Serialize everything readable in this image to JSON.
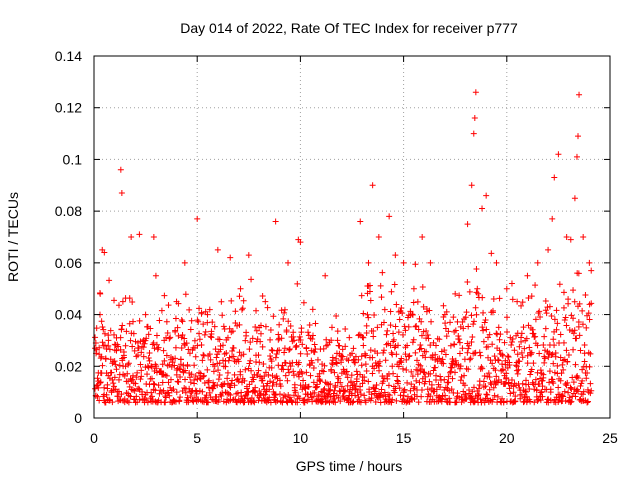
{
  "chart_data": {
    "type": "scatter",
    "title": "Day 014 of 2022, Rate Of TEC Index for receiver p777",
    "xlabel": "GPS time / hours",
    "ylabel": "ROTI / TECUs",
    "xlim": [
      0,
      25
    ],
    "ylim": [
      0,
      0.14
    ],
    "xticks": [
      0,
      5,
      10,
      15,
      20,
      25
    ],
    "xtick_labels": [
      "0",
      "5",
      "10",
      "15",
      "20",
      "25"
    ],
    "yticks": [
      0,
      0.02,
      0.04,
      0.06,
      0.08,
      0.1,
      0.12,
      0.14
    ],
    "ytick_labels": [
      "0",
      "0.02",
      "0.04",
      "0.06",
      "0.08",
      "0.1",
      "0.12",
      "0.14"
    ],
    "grid": true,
    "marker": "+",
    "marker_color": "#ff0000",
    "series": [
      {
        "name": "ROTI",
        "x": [
          0.1,
          0.3,
          0.4,
          0.5,
          0.7,
          1.0,
          1.3,
          1.35,
          1.4,
          1.8,
          2.2,
          2.5,
          2.9,
          3.0,
          3.4,
          4.0,
          4.4,
          5.0,
          5.5,
          6.0,
          6.6,
          7.1,
          7.5,
          8.0,
          8.3,
          8.8,
          9.4,
          9.9,
          10.0,
          10.6,
          11.2,
          11.8,
          12.5,
          12.9,
          13.3,
          13.5,
          13.8,
          14.3,
          14.6,
          15.0,
          15.5,
          15.9,
          16.3,
          17.0,
          17.5,
          18.1,
          18.3,
          18.4,
          18.45,
          18.5,
          18.8,
          19.0,
          19.5,
          20.0,
          20.5,
          21.0,
          21.5,
          22.0,
          22.2,
          22.3,
          22.5,
          22.9,
          23.1,
          23.3,
          23.4,
          23.45,
          23.5,
          23.7,
          24.0
        ],
        "y": [
          0.025,
          0.048,
          0.065,
          0.064,
          0.03,
          0.022,
          0.096,
          0.087,
          0.045,
          0.07,
          0.071,
          0.04,
          0.07,
          0.055,
          0.03,
          0.045,
          0.06,
          0.077,
          0.04,
          0.065,
          0.062,
          0.05,
          0.063,
          0.035,
          0.045,
          0.076,
          0.06,
          0.069,
          0.068,
          0.042,
          0.055,
          0.03,
          0.025,
          0.076,
          0.06,
          0.09,
          0.07,
          0.078,
          0.063,
          0.06,
          0.05,
          0.07,
          0.06,
          0.04,
          0.048,
          0.075,
          0.09,
          0.11,
          0.116,
          0.126,
          0.081,
          0.086,
          0.06,
          0.05,
          0.045,
          0.055,
          0.06,
          0.065,
          0.077,
          0.093,
          0.102,
          0.07,
          0.069,
          0.085,
          0.101,
          0.109,
          0.125,
          0.07,
          0.06
        ]
      }
    ]
  }
}
